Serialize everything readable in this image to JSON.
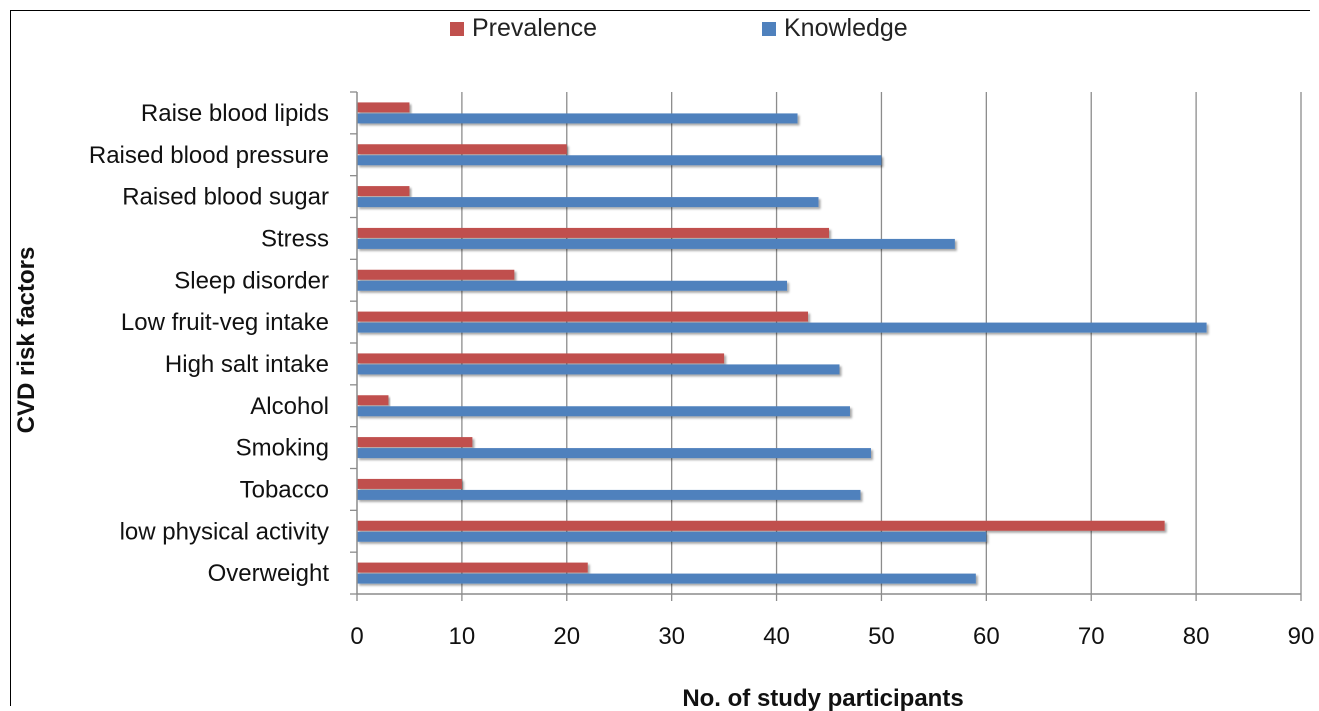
{
  "chart_data": {
    "type": "bar",
    "orientation": "horizontal",
    "title": "",
    "xlabel": "No. of study participants",
    "ylabel": "CVD risk factors",
    "xlim": [
      0,
      90
    ],
    "x_ticks": [
      0,
      10,
      20,
      30,
      40,
      50,
      60,
      70,
      80,
      90
    ],
    "grid": "vertical",
    "legend_position": "top-center",
    "categories": [
      "Raise blood lipids",
      "Raised blood pressure",
      "Raised blood sugar",
      "Stress",
      "Sleep disorder",
      "Low fruit-veg intake",
      "High salt intake",
      "Alcohol",
      "Smoking",
      "Tobacco",
      "low physical activity",
      "Overweight"
    ],
    "series": [
      {
        "name": "Prevalence",
        "color": "#c0504d",
        "values": [
          5,
          20,
          5,
          45,
          15,
          43,
          35,
          3,
          11,
          10,
          77,
          22
        ]
      },
      {
        "name": "Knowledge",
        "color": "#4f81bd",
        "values": [
          42,
          50,
          44,
          57,
          41,
          81,
          46,
          47,
          49,
          48,
          60,
          59
        ]
      }
    ]
  }
}
